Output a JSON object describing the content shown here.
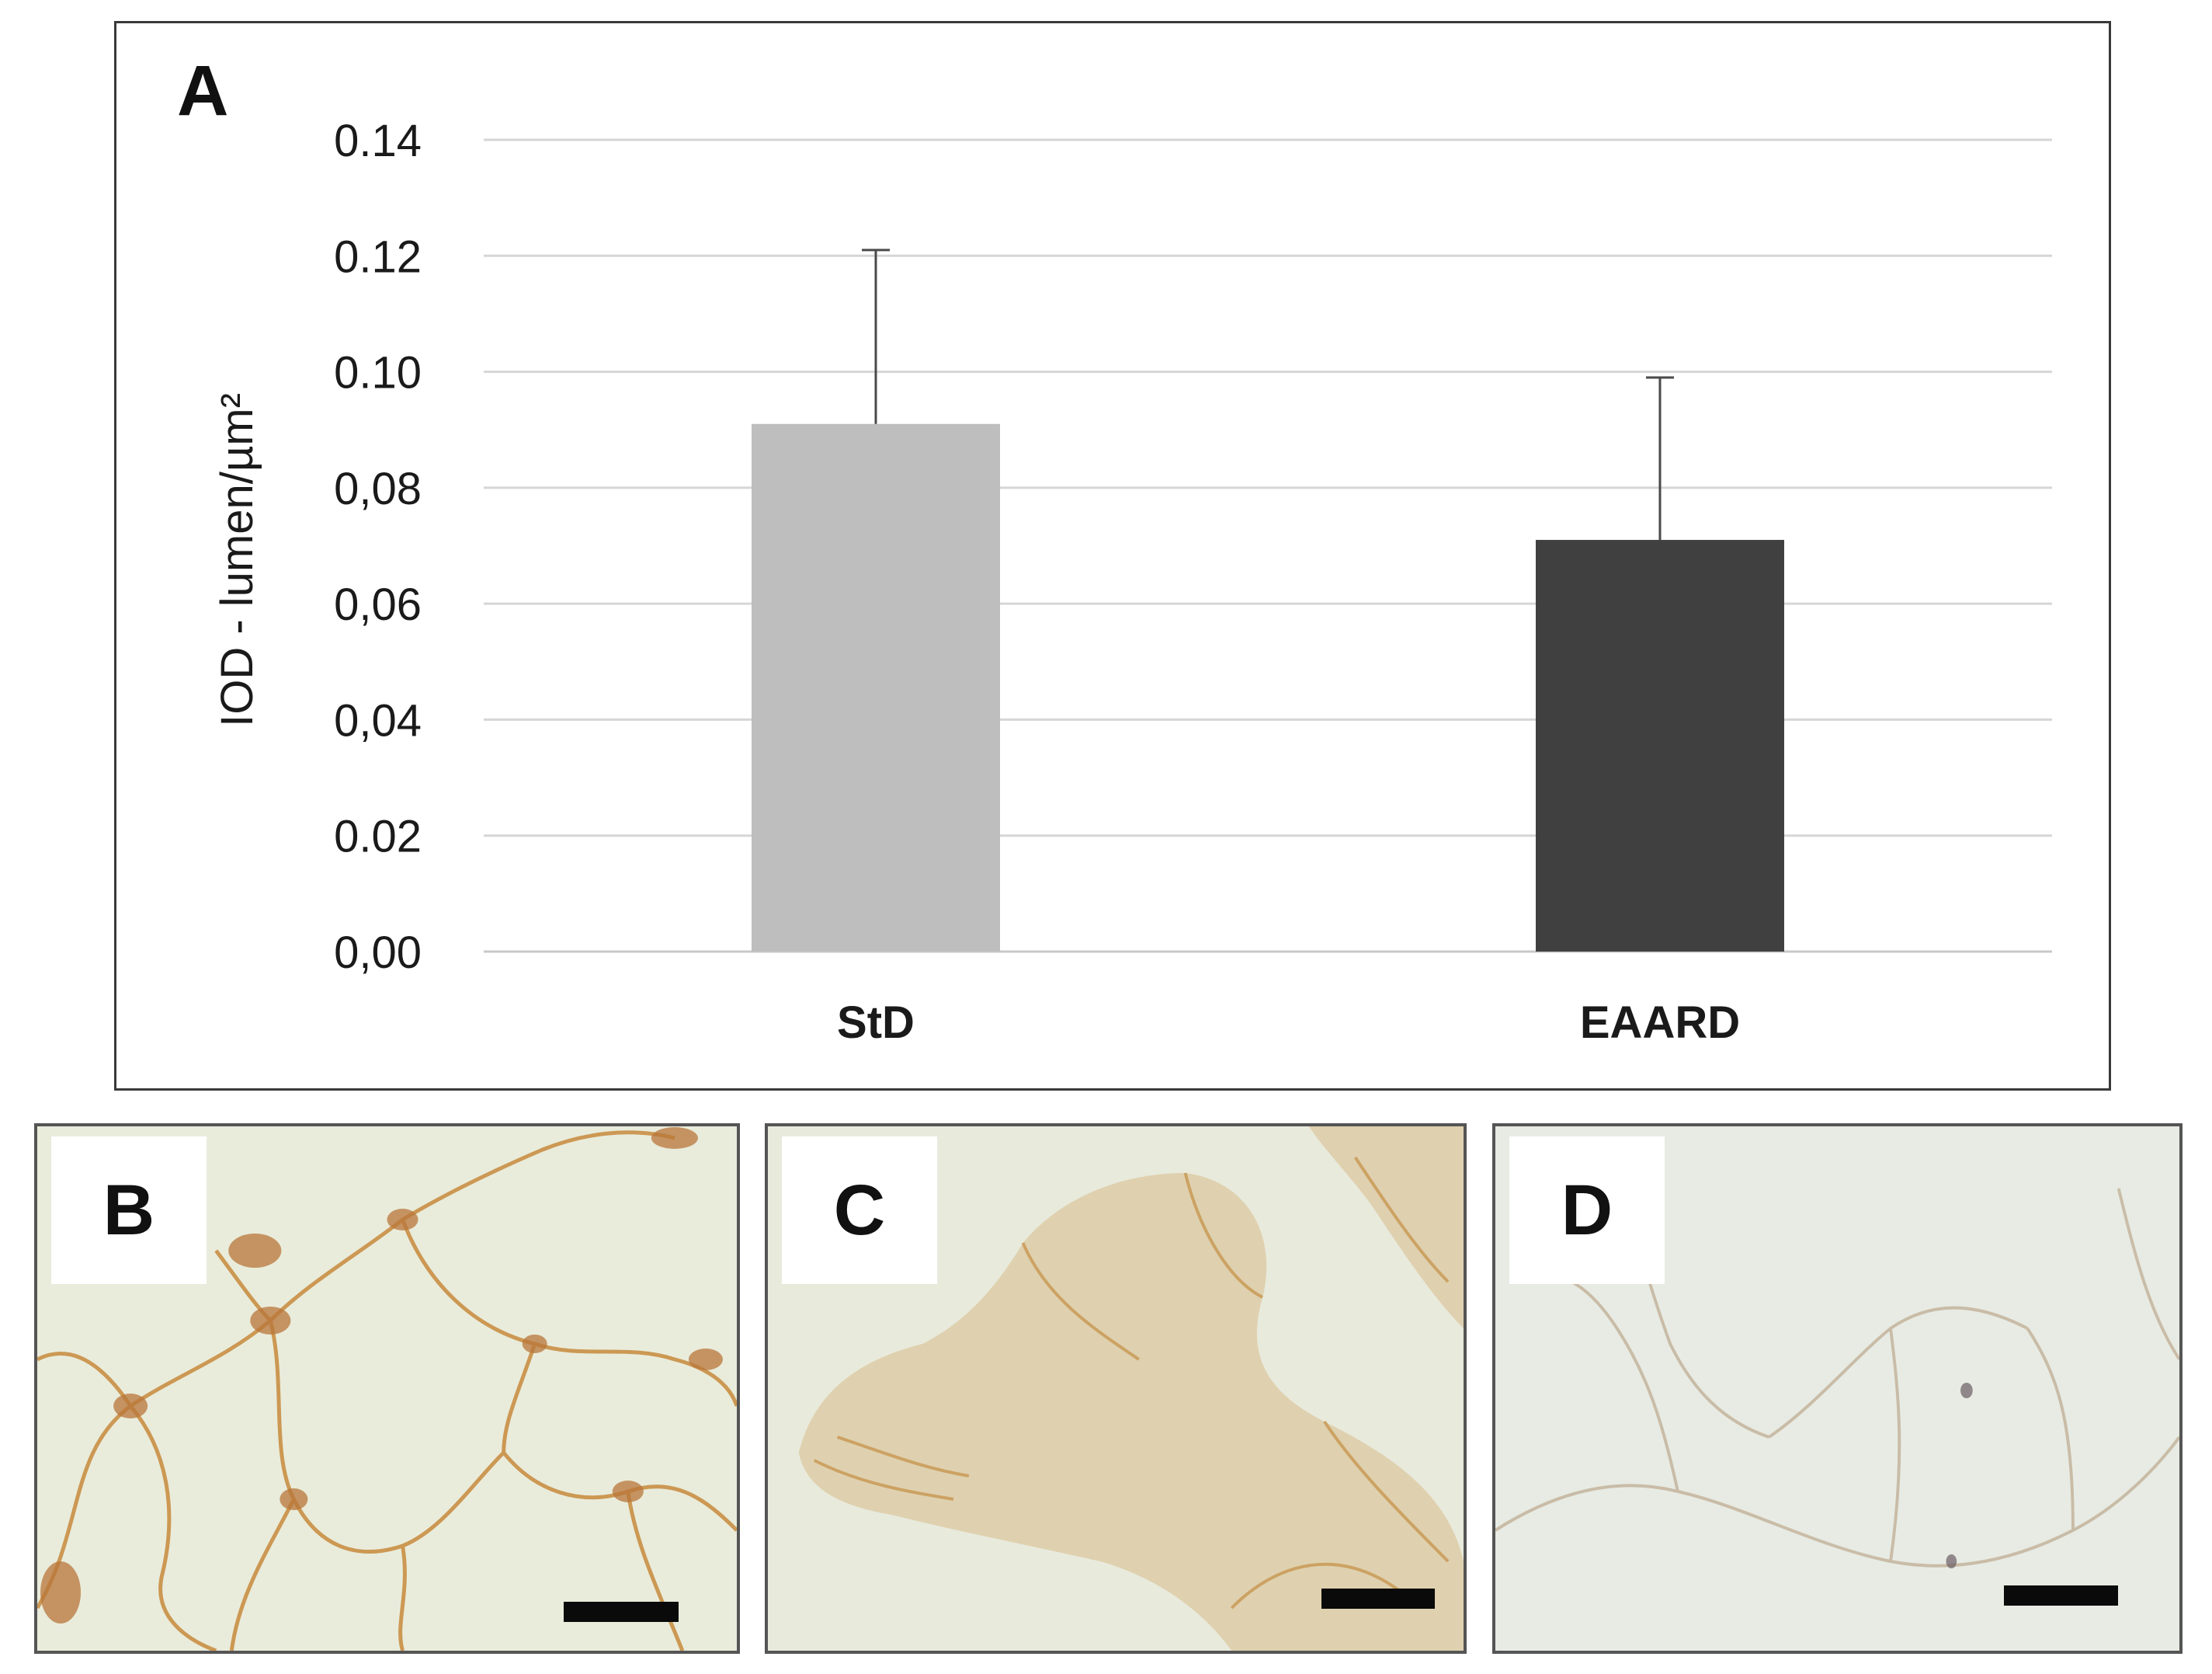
{
  "chart_data": {
    "type": "bar",
    "panel_label": "A",
    "ylabel": "IOD - lumen/µm²",
    "xlabel": "",
    "categories": [
      "StD",
      "EAARD"
    ],
    "values": [
      0.091,
      0.071
    ],
    "errors": [
      0.03,
      0.028
    ],
    "bar_colors": [
      "#bebebe",
      "#404040"
    ],
    "ylim": [
      0,
      0.14
    ],
    "yticks": [
      0.0,
      0.02,
      0.04,
      0.06,
      0.08,
      0.1,
      0.12,
      0.14
    ],
    "ytick_labels": [
      "0,00",
      "0.02",
      "0,04",
      "0,06",
      "0,08",
      "0.10",
      "0.12",
      "0.14"
    ],
    "grid": true
  },
  "micrograph_panels": [
    {
      "label": "B",
      "stain": "strong",
      "tint": "#e9ecdb"
    },
    {
      "label": "C",
      "stain": "medium",
      "tint": "#e8eadc"
    },
    {
      "label": "D",
      "stain": "weak",
      "tint": "#e7ebe3"
    }
  ]
}
